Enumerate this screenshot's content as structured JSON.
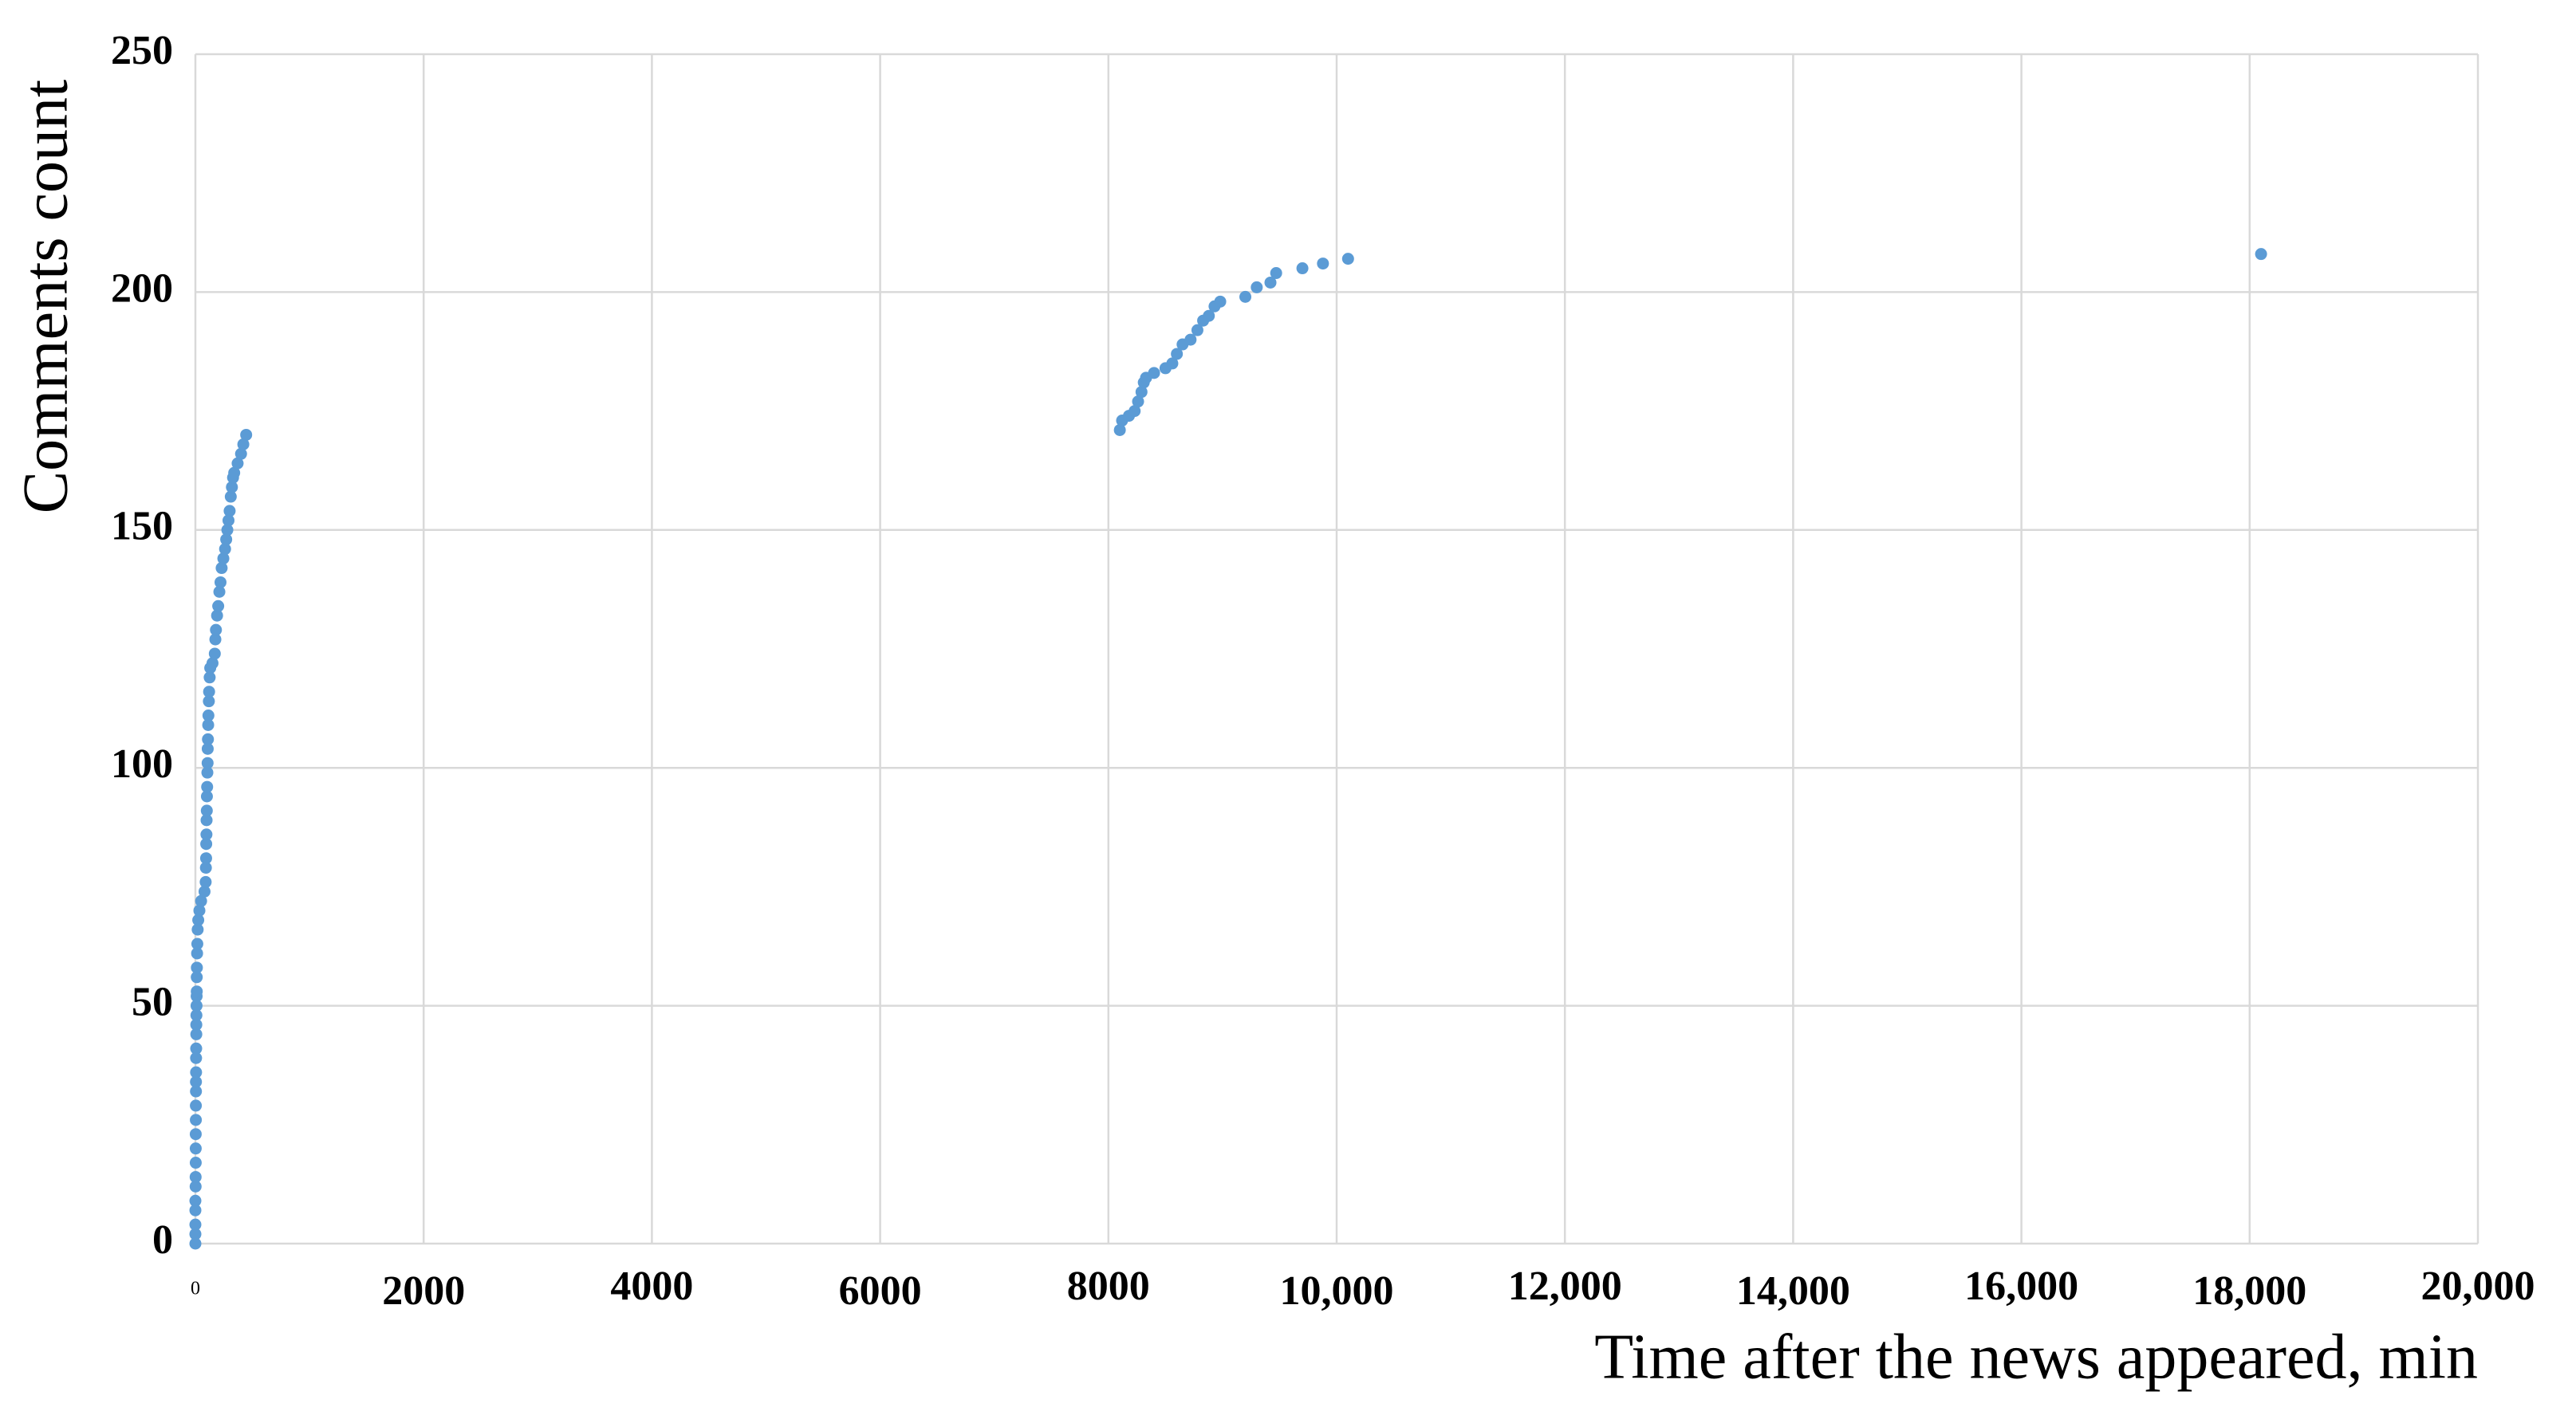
{
  "chart_data": {
    "type": "scatter",
    "x_label": "Time after the news appeared, min",
    "y_label": "Comments count",
    "color": "#5b9bd5",
    "grid": true,
    "xlim": [
      0,
      20000
    ],
    "ylim": [
      0,
      250
    ],
    "xticks": [
      0,
      2000,
      4000,
      6000,
      8000,
      {
        "value": 10000,
        "label": "10,000"
      },
      {
        "value": 12000,
        "label": "12,000"
      },
      {
        "value": 14000,
        "label": "14,000"
      },
      {
        "value": 16000,
        "label": "16,000"
      },
      {
        "value": 18000,
        "label": "18,000"
      },
      {
        "value": 20000,
        "label": "20,000"
      }
    ],
    "yticks": [
      0,
      50,
      100,
      150,
      200,
      250
    ],
    "x": [
      0,
      0,
      0,
      0,
      0,
      2,
      2,
      3,
      3,
      3,
      4,
      4,
      5,
      5,
      6,
      6,
      7,
      8,
      8,
      9,
      10,
      11,
      12,
      12,
      13,
      15,
      17,
      20,
      25,
      35,
      50,
      80,
      90,
      92,
      94,
      95,
      97,
      98,
      100,
      101,
      103,
      105,
      107,
      108,
      110,
      112,
      114,
      118,
      120,
      125,
      130,
      150,
      170,
      175,
      180,
      190,
      200,
      210,
      220,
      230,
      245,
      260,
      270,
      280,
      290,
      300,
      310,
      320,
      330,
      340,
      370,
      400,
      420,
      445,
      8100,
      8120,
      8180,
      8230,
      8260,
      8290,
      8310,
      8330,
      8400,
      8500,
      8560,
      8600,
      8650,
      8720,
      8780,
      8830,
      8880,
      8930,
      8980,
      9200,
      9300,
      9420,
      9470,
      9700,
      9880,
      10100,
      18100
    ],
    "values": [
      0,
      2,
      4,
      7,
      9,
      12,
      14,
      17,
      20,
      23,
      26,
      29,
      32,
      34,
      36,
      39,
      41,
      44,
      46,
      48,
      50,
      52,
      53,
      56,
      58,
      61,
      63,
      66,
      68,
      70,
      72,
      74,
      76,
      79,
      81,
      84,
      86,
      89,
      91,
      94,
      96,
      99,
      101,
      104,
      106,
      109,
      111,
      114,
      116,
      119,
      121,
      122,
      124,
      127,
      129,
      132,
      134,
      137,
      139,
      142,
      144,
      146,
      148,
      150,
      152,
      154,
      157,
      159,
      161,
      162,
      164,
      166,
      168,
      170,
      171,
      173,
      174,
      175,
      177,
      179,
      181,
      182,
      183,
      184,
      185,
      187,
      189,
      190,
      192,
      194,
      195,
      197,
      198,
      199,
      201,
      202,
      204,
      205,
      206,
      207,
      208
    ]
  }
}
